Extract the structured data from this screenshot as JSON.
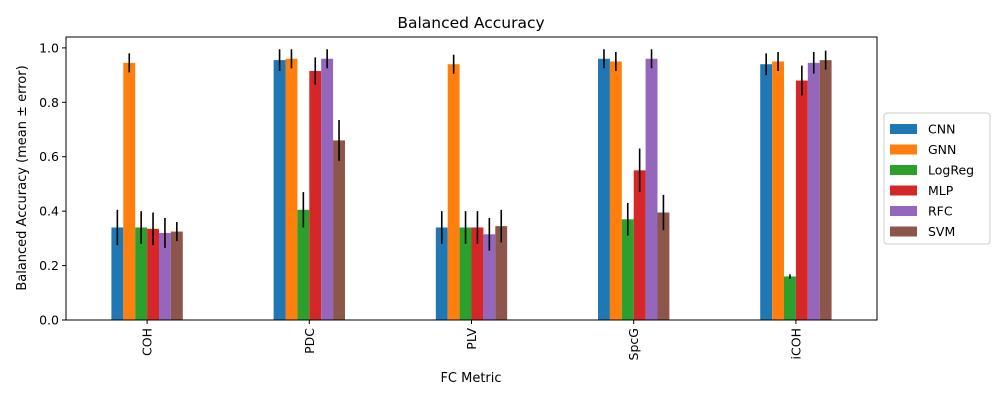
{
  "chart_data": {
    "type": "bar",
    "title": "Balanced Accuracy",
    "xlabel": "FC Metric",
    "ylabel": "Balanced Accuracy (mean ± error)",
    "categories": [
      "COH",
      "PDC",
      "PLV",
      "SpcG",
      "iCOH"
    ],
    "ylim": [
      0,
      1.04
    ],
    "yticks": [
      "0.0",
      "0.2",
      "0.4",
      "0.6",
      "0.8",
      "1.0"
    ],
    "grid": false,
    "legend_position": "right-outside",
    "series": [
      {
        "name": "CNN",
        "color": "#1f77b4",
        "values": [
          0.34,
          0.955,
          0.34,
          0.96,
          0.94
        ],
        "errors": [
          0.065,
          0.04,
          0.06,
          0.035,
          0.04
        ]
      },
      {
        "name": "GNN",
        "color": "#ff7f0e",
        "values": [
          0.945,
          0.96,
          0.94,
          0.95,
          0.95
        ],
        "errors": [
          0.035,
          0.035,
          0.035,
          0.035,
          0.035
        ]
      },
      {
        "name": "LogReg",
        "color": "#2ca02c",
        "values": [
          0.34,
          0.405,
          0.34,
          0.37,
          0.16
        ],
        "errors": [
          0.06,
          0.065,
          0.06,
          0.06,
          0.008
        ]
      },
      {
        "name": "MLP",
        "color": "#d62728",
        "values": [
          0.335,
          0.915,
          0.34,
          0.55,
          0.88
        ],
        "errors": [
          0.06,
          0.05,
          0.06,
          0.08,
          0.055
        ]
      },
      {
        "name": "RFC",
        "color": "#9467bd",
        "values": [
          0.32,
          0.96,
          0.315,
          0.96,
          0.945
        ],
        "errors": [
          0.055,
          0.035,
          0.06,
          0.035,
          0.04
        ]
      },
      {
        "name": "SVM",
        "color": "#8c564b",
        "values": [
          0.325,
          0.66,
          0.345,
          0.395,
          0.955
        ],
        "errors": [
          0.035,
          0.075,
          0.06,
          0.065,
          0.035
        ]
      }
    ]
  }
}
